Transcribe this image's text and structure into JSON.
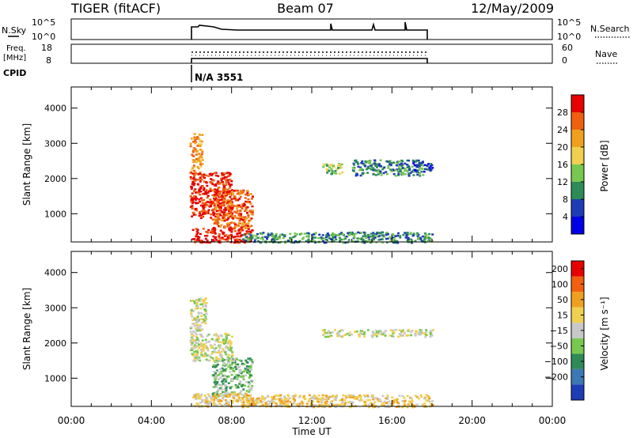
{
  "header": {
    "radar": "TIGER (fitACF)",
    "beam": "Beam 07",
    "date": "12/May/2009"
  },
  "status_panels": {
    "nsky_label": "N.Sky",
    "nsky_ticks": [
      "10^5",
      "10^0"
    ],
    "nsearch_label": "N.Search",
    "nsearch_ticks": [
      "10^5",
      "10^0"
    ],
    "freq_label_1": "Freq.",
    "freq_label_2": "[MHz]",
    "freq_ticks": [
      "18",
      "8"
    ],
    "nave_label": "Nave",
    "nave_ticks": [
      "60",
      "0"
    ],
    "cpid_label": "CPID",
    "cpid_value": "N/A 3551"
  },
  "chart_data": [
    {
      "type": "heatmap",
      "name": "power",
      "ylabel": "Slant Range [km]",
      "yticks": [
        1000,
        2000,
        3000,
        4000
      ],
      "ylim": [
        200,
        4600
      ],
      "xlim": [
        0,
        24
      ],
      "colorbar": {
        "label": "Power [dB]",
        "ticks": [
          "4",
          "8",
          "12",
          "16",
          "20",
          "24",
          "28"
        ],
        "colors": [
          "#0000e6",
          "#1e3cb4",
          "#2e8b57",
          "#78c850",
          "#f0d050",
          "#f0a020",
          "#f06010",
          "#e60000"
        ]
      },
      "regions": [
        {
          "t": [
            5.9,
            6.5
          ],
          "r": [
            2200,
            3300
          ],
          "level": 5
        },
        {
          "t": [
            5.9,
            8.0
          ],
          "r": [
            900,
            2200
          ],
          "level": 7
        },
        {
          "t": [
            7.0,
            9.0
          ],
          "r": [
            600,
            1700
          ],
          "level": 6
        },
        {
          "t": [
            6.0,
            9.0
          ],
          "r": [
            200,
            600
          ],
          "level": 7
        },
        {
          "t": [
            8.5,
            18.0
          ],
          "r": [
            200,
            500
          ],
          "level": 2
        },
        {
          "t": [
            12.5,
            13.5
          ],
          "r": [
            2150,
            2450
          ],
          "level": 3
        },
        {
          "t": [
            14.0,
            17.5
          ],
          "r": [
            2100,
            2550
          ],
          "level": 2
        },
        {
          "t": [
            17.0,
            18.0
          ],
          "r": [
            2200,
            2500
          ],
          "level": 1
        }
      ]
    },
    {
      "type": "heatmap",
      "name": "velocity",
      "ylabel": "Slant Range [km]",
      "xlabel": "Time UT",
      "xticks": [
        "00:00",
        "04:00",
        "08:00",
        "12:00",
        "16:00",
        "20:00",
        "00:00"
      ],
      "yticks": [
        1000,
        2000,
        3000,
        4000
      ],
      "ylim": [
        200,
        4600
      ],
      "xlim": [
        0,
        24
      ],
      "colorbar": {
        "label": "Velocity [m s⁻¹]",
        "ticks": [
          "200",
          "100",
          "50",
          "15",
          "−15",
          "−50",
          "−100",
          "−200"
        ],
        "colors": [
          "#1e3cb4",
          "#3c78b4",
          "#2e8b57",
          "#78c850",
          "#c8c8c8",
          "#f0d050",
          "#f0a020",
          "#f06010",
          "#e60000"
        ]
      },
      "regions": [
        {
          "t": [
            5.9,
            6.7
          ],
          "r": [
            2300,
            3300
          ],
          "level": 4
        },
        {
          "t": [
            5.9,
            8.0
          ],
          "r": [
            1500,
            2300
          ],
          "level": 4
        },
        {
          "t": [
            7.0,
            9.0
          ],
          "r": [
            500,
            1600
          ],
          "level": 3
        },
        {
          "t": [
            6.0,
            9.0
          ],
          "r": [
            200,
            600
          ],
          "level": 5
        },
        {
          "t": [
            8.5,
            18.0
          ],
          "r": [
            200,
            550
          ],
          "level": 5
        },
        {
          "t": [
            12.5,
            18.0
          ],
          "r": [
            2200,
            2400
          ],
          "level": 4
        }
      ]
    }
  ]
}
